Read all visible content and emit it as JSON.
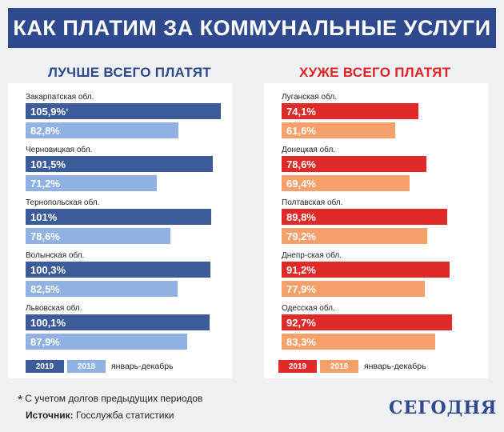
{
  "title": "КАК ПЛАТИМ ЗА КОММУНАЛЬНЫЕ УСЛУГИ",
  "colors": {
    "title_bg": "#2e4a8c",
    "best_2019": "#3c5c99",
    "best_2018": "#8fb2e2",
    "worst_2019": "#e02a2a",
    "worst_2018": "#f5a06a",
    "best_heading": "#2e4a8c",
    "worst_heading": "#e02424"
  },
  "chart_data": [
    {
      "type": "bar",
      "title": "ЛУЧШЕ ВСЕГО ПЛАТЯТ",
      "categories": [
        "Закарпатская обл.",
        "Черновицкая обл.",
        "Тернопольская обл.",
        "Волынская обл.",
        "Львовская обл."
      ],
      "series": [
        {
          "name": "2019",
          "values": [
            105.9,
            101.5,
            101,
            100.3,
            100.1
          ],
          "labels": [
            "105,9%",
            "101,5%",
            "101%",
            "100,3%",
            "100,1%"
          ]
        },
        {
          "name": "2018",
          "values": [
            82.8,
            71.2,
            78.6,
            82.5,
            87.9
          ],
          "labels": [
            "82,8%",
            "71,2%",
            "78,6%",
            "82,5%",
            "87,9%"
          ]
        }
      ],
      "annotations": [
        "*"
      ],
      "legend_text": "январь-декабрь"
    },
    {
      "type": "bar",
      "title": "ХУЖЕ ВСЕГО ПЛАТЯТ",
      "categories": [
        "Луганская обл.",
        "Донецкая обл.",
        "Полтавская обл.",
        "Днепр-ская обл.",
        "Одесская обл."
      ],
      "series": [
        {
          "name": "2019",
          "values": [
            74.1,
            78.6,
            89.8,
            91.2,
            92.7
          ],
          "labels": [
            "74,1%",
            "78,6%",
            "89,8%",
            "91,2%",
            "92,7%"
          ]
        },
        {
          "name": "2018",
          "values": [
            61.6,
            69.4,
            79.2,
            77.9,
            83.3
          ],
          "labels": [
            "61,6%",
            "69,4%",
            "79,2%",
            "77,9%",
            "83,3%"
          ]
        }
      ],
      "legend_text": "январь-декабрь"
    }
  ],
  "footnote": {
    "star": "*",
    "text": "С учетом долгов предыдущих периодов"
  },
  "source": {
    "label": "Источник:",
    "text": "Госслужба статистики"
  },
  "logo": "СЕГОДНЯ"
}
